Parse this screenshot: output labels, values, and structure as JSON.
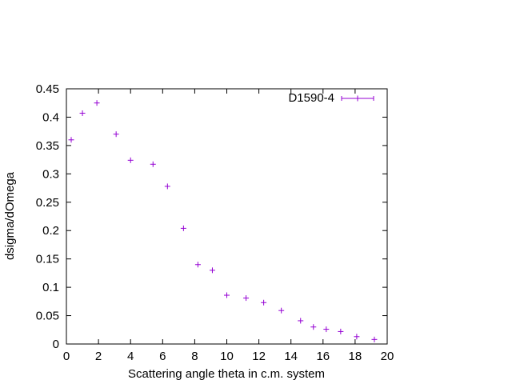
{
  "chart_data": {
    "type": "scatter",
    "title": "",
    "xlabel": "Scattering angle theta in c.m. system",
    "ylabel": "dsigma/dOmega",
    "xlim": [
      0,
      20
    ],
    "ylim": [
      0,
      0.45
    ],
    "xticks": [
      0,
      2,
      4,
      6,
      8,
      10,
      12,
      14,
      16,
      18,
      20
    ],
    "yticks": [
      0,
      0.05,
      0.1,
      0.15,
      0.2,
      0.25,
      0.3,
      0.35,
      0.4,
      0.45
    ],
    "xtick_labels": [
      "0",
      "2",
      "4",
      "6",
      "8",
      "10",
      "12",
      "14",
      "16",
      "18",
      "20"
    ],
    "ytick_labels": [
      "0",
      "0.05",
      "0.1",
      "0.15",
      "0.2",
      "0.25",
      "0.3",
      "0.35",
      "0.4",
      "0.45"
    ],
    "grid": false,
    "legend_position": "top-right",
    "series": [
      {
        "name": "D1590-4",
        "color": "#9400d3",
        "marker": "plus",
        "x": [
          0.3,
          1.0,
          1.9,
          3.1,
          4.0,
          5.4,
          6.3,
          7.3,
          8.2,
          9.1,
          10.0,
          11.2,
          12.3,
          13.4,
          14.6,
          15.4,
          16.2,
          17.1,
          18.1,
          19.2
        ],
        "y": [
          0.36,
          0.407,
          0.425,
          0.37,
          0.324,
          0.317,
          0.278,
          0.204,
          0.14,
          0.13,
          0.086,
          0.081,
          0.073,
          0.059,
          0.041,
          0.03,
          0.026,
          0.022,
          0.013,
          0.008
        ]
      }
    ]
  }
}
